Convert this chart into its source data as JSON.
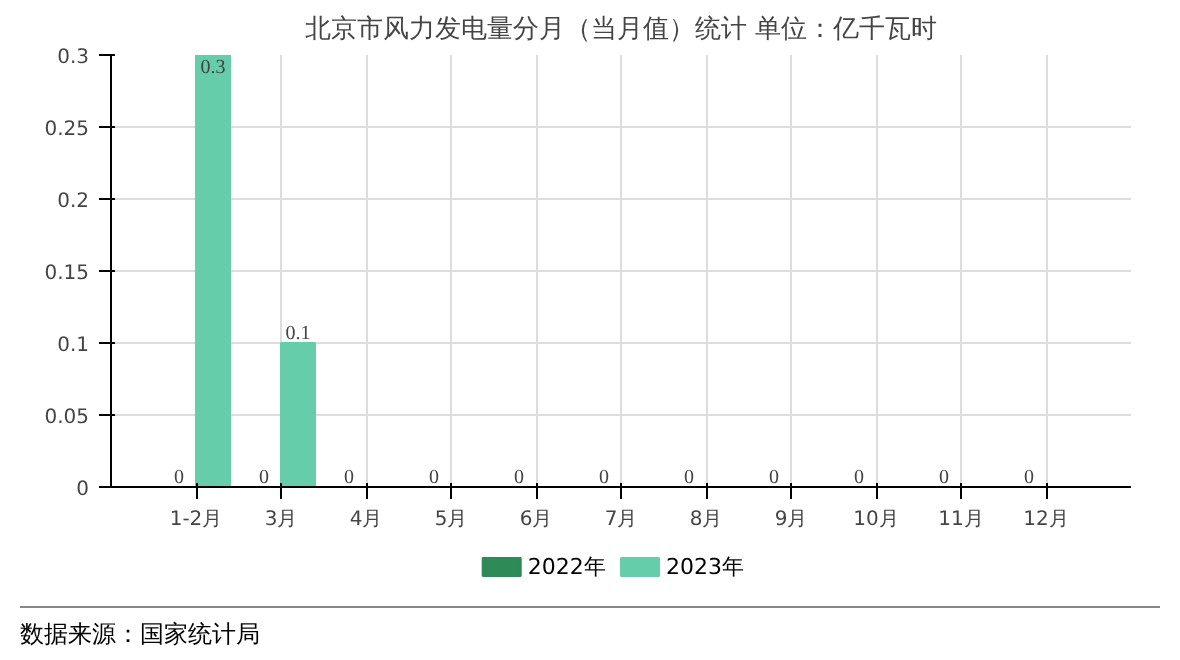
{
  "chart_data": {
    "type": "bar",
    "title": "北京市风力发电量分月（当月值）统计 单位：亿千瓦时",
    "categories": [
      "1-2月",
      "3月",
      "4月",
      "5月",
      "6月",
      "7月",
      "8月",
      "9月",
      "10月",
      "11月",
      "12月"
    ],
    "series": [
      {
        "name": "2022年",
        "color": "#2e8b57",
        "values": [
          0,
          0,
          0,
          0,
          0,
          0,
          0,
          0,
          0,
          0,
          0
        ]
      },
      {
        "name": "2023年",
        "color": "#66cdaa",
        "values": [
          0.3,
          0.1,
          null,
          null,
          null,
          null,
          null,
          null,
          null,
          null,
          null
        ]
      }
    ],
    "ylim": [
      0,
      0.3
    ],
    "yticks": [
      0,
      0.05,
      0.1,
      0.15,
      0.2,
      0.25,
      0.3
    ],
    "grid": true,
    "legend": "bottom",
    "data_labels": true,
    "annotations": [
      "数据来源：国家统计局"
    ]
  }
}
